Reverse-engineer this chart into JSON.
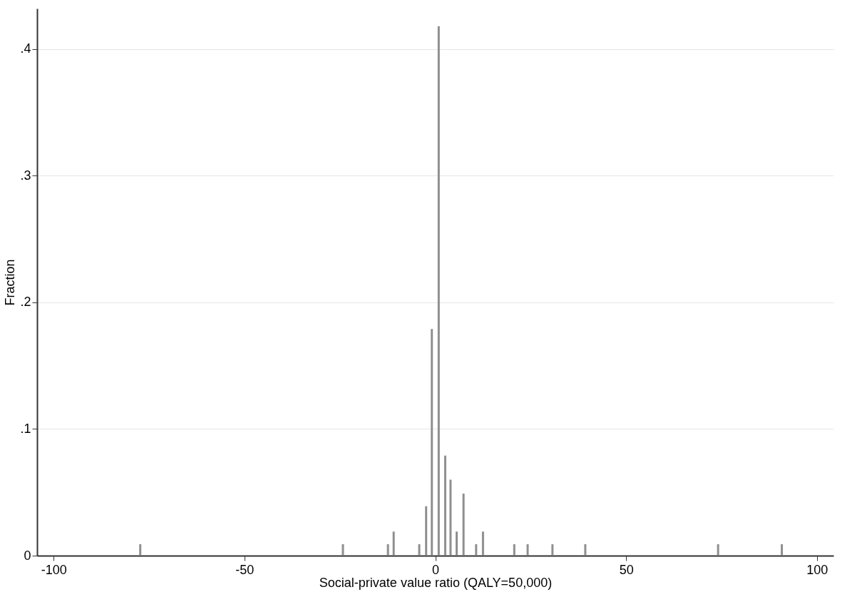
{
  "chart_data": {
    "type": "bar",
    "xlabel": "Social-private value ratio (QALY=50,000)",
    "ylabel": "Fraction",
    "x": [
      -77.3,
      -24.2,
      -12.4,
      -10.9,
      -4.2,
      -2.4,
      -0.9,
      0.9,
      2.6,
      4.0,
      5.6,
      7.4,
      10.7,
      12.5,
      20.7,
      24.2,
      30.7,
      39.3,
      74.1,
      90.8
    ],
    "values": [
      0.009,
      0.009,
      0.009,
      0.019,
      0.009,
      0.039,
      0.179,
      0.418,
      0.079,
      0.06,
      0.019,
      0.049,
      0.009,
      0.019,
      0.009,
      0.009,
      0.009,
      0.009,
      0.009,
      0.009
    ],
    "color": "#8f8f8f",
    "xlim": [
      -103.4,
      103.4
    ],
    "xticks": [
      -100,
      -50,
      0,
      50,
      100
    ],
    "ylim": [
      0,
      0.432
    ],
    "yticks": [
      {
        "value": 0,
        "label": "0"
      },
      {
        "value": 0.1,
        "label": ".1"
      },
      {
        "value": 0.2,
        "label": ".2"
      },
      {
        "value": 0.3,
        "label": ".3"
      },
      {
        "value": 0.4,
        "label": ".4"
      }
    ],
    "grid": "y"
  }
}
